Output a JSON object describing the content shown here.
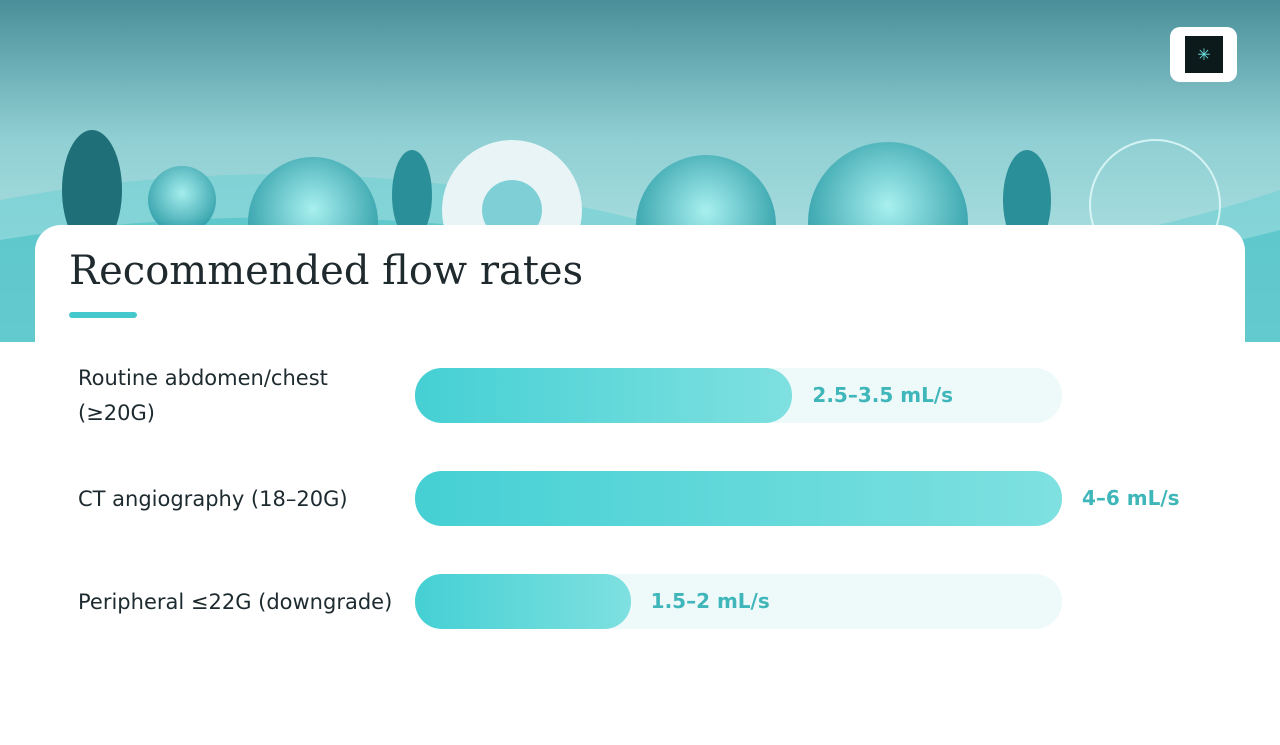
{
  "chart_data": {
    "type": "bar",
    "orientation": "horizontal",
    "title": "Recommended flow rates",
    "categories": [
      "Routine abdomen/chest (≥20G)",
      "CT angiography (18–20G)",
      "Peripheral ≤22G (downgrade)"
    ],
    "values": [
      3.5,
      6,
      2
    ],
    "value_labels": [
      "2.5–3.5 mL/s",
      "4–6 mL/s",
      "1.5–2 mL/s"
    ],
    "xlim": [
      0,
      6
    ],
    "color": "#45d0d4"
  }
}
